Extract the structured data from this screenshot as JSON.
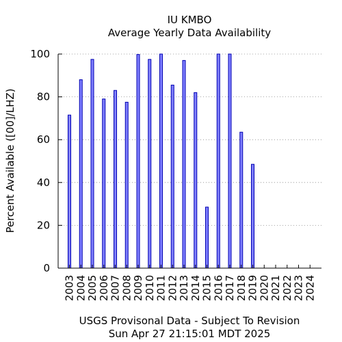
{
  "chart_data": {
    "type": "bar",
    "title": "IU KMBO",
    "subtitle": "Average Yearly Data Availability",
    "ylabel": "Percent Available ([00]/LHZ)",
    "xlabel": "",
    "footer_line1": "USGS Provisonal Data - Subject To Revision",
    "footer_line2": "Sun Apr 27 21:15:01 MDT 2025",
    "categories": [
      "2003",
      "2004",
      "2005",
      "2006",
      "2007",
      "2008",
      "2009",
      "2010",
      "2011",
      "2012",
      "2013",
      "2014",
      "2015",
      "2016",
      "2017",
      "2018",
      "2019",
      "2020",
      "2021",
      "2022",
      "2023",
      "2024"
    ],
    "values": [
      71.5,
      88,
      97.5,
      79,
      83,
      77.5,
      99.8,
      97.5,
      100,
      85.5,
      97,
      82,
      28.5,
      100,
      100,
      63.5,
      48.5,
      0,
      0,
      0,
      0,
      0
    ],
    "ylim": [
      0,
      100
    ],
    "yticks": [
      "0",
      "20",
      "40",
      "60",
      "80",
      "100"
    ],
    "grid": true,
    "bar_color": "#7f7fff",
    "bar_edge_color": "#0000b0"
  }
}
